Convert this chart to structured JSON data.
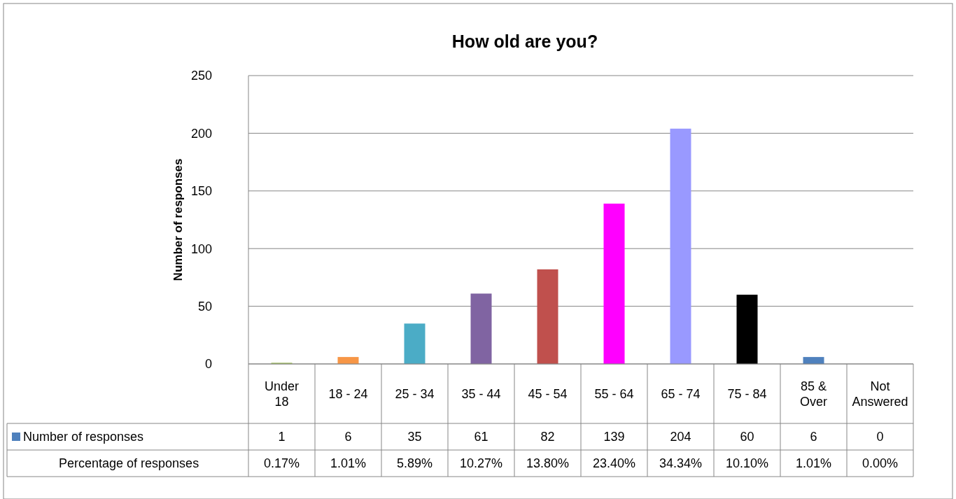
{
  "chart_data": {
    "type": "bar",
    "title": "How old are you?",
    "ylabel": "Number of responses",
    "categories": [
      "Under 18",
      "18 - 24",
      "25 - 34",
      "35 - 44",
      "45 - 54",
      "55 - 64",
      "65 - 74",
      "75 - 84",
      "85 & Over",
      "Not Answered"
    ],
    "series": [
      {
        "name": "Number of responses",
        "color": "#4f81bd",
        "colors": [
          "#9bbb59",
          "#f79646",
          "#4bacc6",
          "#8064a2",
          "#c0504d",
          "#ff00ff",
          "#9999ff",
          "#000000",
          "#4f81bd",
          "#4f81bd"
        ],
        "values": [
          1,
          6,
          35,
          61,
          82,
          139,
          204,
          60,
          6,
          0
        ]
      },
      {
        "name": "Percentage of responses",
        "values": [
          null,
          null,
          null,
          null,
          null,
          null,
          null,
          null,
          null,
          null
        ],
        "value_labels": [
          "0.17%",
          "1.01%",
          "5.89%",
          "10.27%",
          "13.80%",
          "23.40%",
          "34.34%",
          "10.10%",
          "1.01%",
          "0.00%"
        ]
      }
    ],
    "ylim": [
      0,
      250
    ],
    "yticks": [
      0,
      50,
      100,
      150,
      200,
      250
    ],
    "grid": "y",
    "legend": "bottom",
    "data_labels": true
  }
}
